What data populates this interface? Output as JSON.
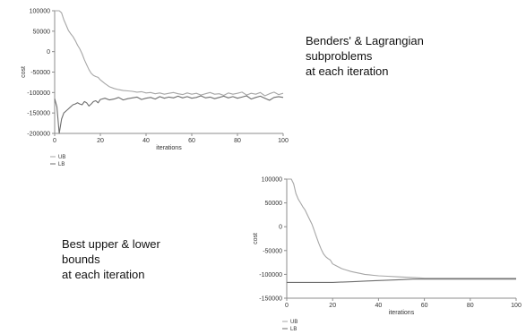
{
  "captions": {
    "top": [
      "Benders' & Lagrangian",
      "subproblems",
      "at each iteration"
    ],
    "bottom": [
      "Best upper & lower",
      "bounds",
      "at each iteration"
    ]
  },
  "colors": {
    "ub": "#a6a6a6",
    "lb": "#6e6e6e",
    "axis": "#8c8c8c",
    "text": "#333333",
    "background": "#ffffff"
  },
  "chart_data": [
    {
      "type": "line",
      "title": "Benders' & Lagrangian subproblems at each iteration",
      "xlabel": "iterations",
      "ylabel": "cost",
      "xlim": [
        0,
        100
      ],
      "ylim": [
        -200000,
        100000
      ],
      "xticks": [
        0,
        20,
        40,
        60,
        80,
        100
      ],
      "xtick_labels": [
        "0",
        "20",
        "40",
        "60",
        "80",
        "100"
      ],
      "yticks": [
        100000,
        50000,
        0,
        -50000,
        -100000,
        -150000,
        -200000
      ],
      "ytick_labels": [
        "100000",
        "50000",
        "0",
        "-50000",
        "-100000",
        "-150000",
        "-200000"
      ],
      "legend": "below-left",
      "grid": false,
      "series": [
        {
          "name": "UB",
          "x": [
            0,
            1,
            2,
            3,
            4,
            5,
            6,
            7,
            8,
            9,
            10,
            11,
            12,
            13,
            14,
            15,
            16,
            17,
            18,
            19,
            20,
            22,
            24,
            26,
            28,
            30,
            32,
            34,
            36,
            38,
            40,
            42,
            44,
            46,
            48,
            50,
            52,
            54,
            56,
            58,
            60,
            62,
            64,
            66,
            68,
            70,
            72,
            74,
            76,
            78,
            80,
            82,
            84,
            86,
            88,
            90,
            92,
            94,
            96,
            98,
            100
          ],
          "values": [
            100000,
            100000,
            100000,
            95000,
            78000,
            65000,
            52000,
            44000,
            37000,
            27000,
            16000,
            7000,
            -5000,
            -20000,
            -32000,
            -44000,
            -53000,
            -58000,
            -61000,
            -63000,
            -69000,
            -78000,
            -86000,
            -90000,
            -93000,
            -95000,
            -96000,
            -97000,
            -99000,
            -98000,
            -101000,
            -100000,
            -103000,
            -101000,
            -104000,
            -102000,
            -100000,
            -103000,
            -105000,
            -101000,
            -104000,
            -102000,
            -106000,
            -103000,
            -100000,
            -104000,
            -103000,
            -107000,
            -101000,
            -104000,
            -102000,
            -99000,
            -106000,
            -102000,
            -104000,
            -100000,
            -108000,
            -103000,
            -99000,
            -105000,
            -102000
          ]
        },
        {
          "name": "LB",
          "x": [
            0,
            1,
            2,
            3,
            4,
            5,
            6,
            7,
            8,
            9,
            10,
            11,
            12,
            13,
            14,
            15,
            16,
            17,
            18,
            19,
            20,
            22,
            24,
            26,
            28,
            30,
            32,
            34,
            36,
            38,
            40,
            42,
            44,
            46,
            48,
            50,
            52,
            54,
            56,
            58,
            60,
            62,
            64,
            66,
            68,
            70,
            72,
            74,
            76,
            78,
            80,
            82,
            84,
            86,
            88,
            90,
            92,
            94,
            96,
            98,
            100
          ],
          "values": [
            -115000,
            -135000,
            -200000,
            -165000,
            -150000,
            -145000,
            -140000,
            -135000,
            -130000,
            -128000,
            -125000,
            -128000,
            -130000,
            -122000,
            -125000,
            -133000,
            -128000,
            -122000,
            -120000,
            -125000,
            -117000,
            -114000,
            -118000,
            -116000,
            -112000,
            -118000,
            -115000,
            -113000,
            -111000,
            -117000,
            -114000,
            -112000,
            -116000,
            -110000,
            -114000,
            -111000,
            -113000,
            -109000,
            -113000,
            -110000,
            -114000,
            -112000,
            -108000,
            -113000,
            -111000,
            -115000,
            -112000,
            -109000,
            -113000,
            -110000,
            -114000,
            -111000,
            -108000,
            -116000,
            -112000,
            -109000,
            -114000,
            -119000,
            -112000,
            -110000,
            -112000
          ]
        }
      ]
    },
    {
      "type": "line",
      "title": "Best upper & lower bounds at each iteration",
      "xlabel": "iterations",
      "ylabel": "cost",
      "xlim": [
        0,
        100
      ],
      "ylim": [
        -150000,
        100000
      ],
      "xticks": [
        0,
        20,
        40,
        60,
        80,
        100
      ],
      "xtick_labels": [
        "0",
        "20",
        "40",
        "60",
        "80",
        "100"
      ],
      "yticks": [
        100000,
        50000,
        0,
        -50000,
        -100000,
        -150000
      ],
      "ytick_labels": [
        "100000",
        "50000",
        "0",
        "-50000",
        "-100000",
        "-150000"
      ],
      "legend": "below-left",
      "grid": false,
      "series": [
        {
          "name": "UB",
          "x": [
            0,
            1,
            2,
            3,
            4,
            5,
            6,
            7,
            8,
            9,
            10,
            11,
            12,
            13,
            14,
            15,
            16,
            17,
            18,
            19,
            20,
            22,
            24,
            26,
            28,
            30,
            32,
            34,
            36,
            38,
            40,
            44,
            48,
            52,
            56,
            60,
            70,
            80,
            90,
            100
          ],
          "values": [
            100000,
            100000,
            100000,
            90000,
            70000,
            58000,
            50000,
            42000,
            35000,
            25000,
            15000,
            5000,
            -8000,
            -22000,
            -35000,
            -47000,
            -57000,
            -63000,
            -67000,
            -70000,
            -78000,
            -83000,
            -88000,
            -91000,
            -94000,
            -96000,
            -98000,
            -100000,
            -101000,
            -102000,
            -103000,
            -104000,
            -105000,
            -106000,
            -107000,
            -108000,
            -108000,
            -108000,
            -108000,
            -108000
          ]
        },
        {
          "name": "LB",
          "x": [
            0,
            10,
            20,
            25,
            30,
            35,
            40,
            45,
            50,
            55,
            60,
            70,
            80,
            90,
            100
          ],
          "values": [
            -117000,
            -117000,
            -117000,
            -116000,
            -115000,
            -114000,
            -113000,
            -112000,
            -111000,
            -110000,
            -110000,
            -110000,
            -110000,
            -110000,
            -110000
          ]
        }
      ]
    }
  ]
}
